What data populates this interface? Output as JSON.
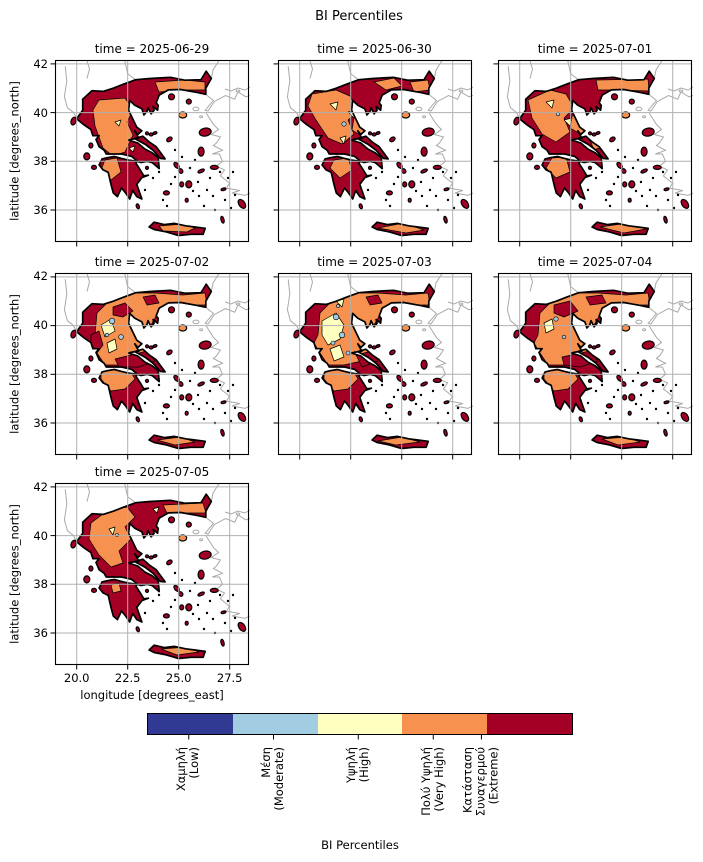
{
  "figure": {
    "title": "BI Percentiles",
    "background": "#ffffff"
  },
  "facets": [
    {
      "title": "time = 2025-06-29"
    },
    {
      "title": "time = 2025-06-30"
    },
    {
      "title": "time = 2025-07-01"
    },
    {
      "title": "time = 2025-07-02"
    },
    {
      "title": "time = 2025-07-03"
    },
    {
      "title": "time = 2025-07-04"
    },
    {
      "title": "time = 2025-07-05"
    }
  ],
  "axes": {
    "x_label": "longitude [degrees_east]",
    "y_label": "latitude [degrees_north]",
    "x_ticks": [
      "20.0",
      "22.5",
      "25.0",
      "27.5"
    ],
    "y_ticks": [
      "42",
      "40",
      "38",
      "36"
    ]
  },
  "colorbar": {
    "label": "BI Percentiles",
    "classes": [
      {
        "color": "#303a92",
        "lines": [
          "Χαμηλή",
          "(Low)"
        ],
        "tick_frac": 0.098
      },
      {
        "color": "#a1cce2",
        "lines": [
          "Μέση",
          "(Moderate)"
        ],
        "tick_frac": 0.297
      },
      {
        "color": "#ffffc0",
        "lines": [
          "Υψηλή",
          "(High)"
        ],
        "tick_frac": 0.496
      },
      {
        "color": "#f7914f",
        "lines": [
          "Πολύ Υψηλή",
          "(Very High)"
        ],
        "tick_frac": 0.672
      },
      {
        "color": "#a40026",
        "lines": [
          "Κατάσταση",
          "Συναγερμού",
          "(Extreme)"
        ],
        "tick_frac": 0.785
      }
    ]
  },
  "map_colors": {
    "sea": "#ffffff",
    "gridline": "#b0b0b0",
    "neighbor_coastline": "#a9a9a9",
    "contour_outline": "#000000"
  },
  "chart_data": {
    "type": "heatmap",
    "title": "BI Percentiles",
    "facet_variable": "time",
    "facets": [
      "2025-06-29",
      "2025-06-30",
      "2025-07-01",
      "2025-07-02",
      "2025-07-03",
      "2025-07-04",
      "2025-07-05"
    ],
    "region": "Greece",
    "xlabel": "longitude [degrees_east]",
    "ylabel": "latitude [degrees_north]",
    "xlim": [
      18.9,
      28.5
    ],
    "ylim": [
      34.7,
      42.2
    ],
    "x_ticks": [
      20.0,
      22.5,
      25.0,
      27.5
    ],
    "y_ticks": [
      36,
      38,
      40,
      42
    ],
    "grid": true,
    "legend_position": "bottom horizontal colorbar",
    "colorbar_label": "BI Percentiles",
    "categories": [
      {
        "label_el": "Χαμηλή",
        "label_en": "Low",
        "color": "#303a92"
      },
      {
        "label_el": "Μέση",
        "label_en": "Moderate",
        "color": "#a1cce2"
      },
      {
        "label_el": "Υψηλή",
        "label_en": "High",
        "color": "#ffffc0"
      },
      {
        "label_el": "Πολύ Υψηλή",
        "label_en": "Very High",
        "color": "#f7914f"
      },
      {
        "label_el": "Κατάσταση Συναγερμού",
        "label_en": "Extreme",
        "color": "#a40026"
      }
    ],
    "facet_summaries": [
      "Mostly Extreme; Very High band over west-central mainland, Thrace strip and central Crete",
      "Mostly Extreme; Very High northwest and central mainland, small High pockets, tiny Moderate spot",
      "Mostly Extreme; Very High in northwest/north, scattered High pockets, central Crete Very High",
      "Very High over most of northern/central mainland with High and Moderate pockets; Extreme on west coast, southeast mainland, Peloponnese and islands",
      "Largest Very High/High extent with several Moderate pockets; Extreme in Peloponnese, eastern mainland, NE corner and islands",
      "Very High over north/central mainland, few Moderate spots; Extreme in Peloponnese, south and islands",
      "Extreme over center/south; Very High northwest region and Thrace strip, central Crete Very High"
    ]
  }
}
